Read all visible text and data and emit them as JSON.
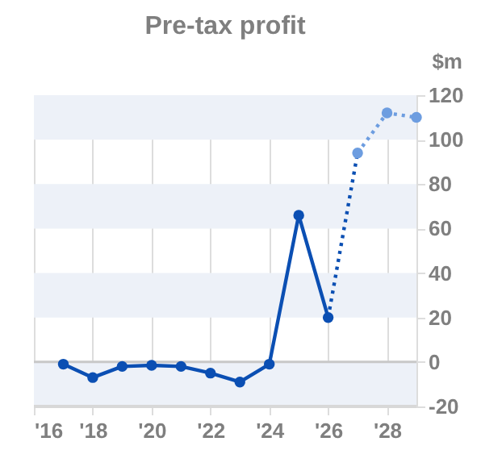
{
  "chart_data": {
    "type": "line",
    "title": "Pre-tax profit",
    "ylabel": "$m",
    "series": [
      {
        "color": "#0b4fb3",
        "line_style": "solid",
        "marker": "circle",
        "x": [
          2017,
          2018,
          2019,
          2020,
          2021,
          2022,
          2023,
          2024,
          2025,
          2026
        ],
        "values": [
          -1,
          -7,
          -2,
          -1.5,
          -2,
          -5,
          -9,
          -1,
          66,
          20
        ]
      },
      {
        "color": "#0b4fb3",
        "line_style": "dotted",
        "marker": "none",
        "x": [
          2026,
          2027
        ],
        "values": [
          20,
          94
        ]
      },
      {
        "color": "#6d9de0",
        "line_style": "dotted",
        "marker": "circle",
        "x": [
          2027,
          2028,
          2029
        ],
        "values": [
          94,
          112,
          110
        ]
      }
    ],
    "xlim": [
      2016,
      2029
    ],
    "xticks": [
      {
        "value": 2016,
        "label": "'16"
      },
      {
        "value": 2018,
        "label": "'18"
      },
      {
        "value": 2020,
        "label": "'20"
      },
      {
        "value": 2022,
        "label": "'22"
      },
      {
        "value": 2024,
        "label": "'24"
      },
      {
        "value": 2026,
        "label": "'26"
      },
      {
        "value": 2028,
        "label": "'28"
      }
    ],
    "ylim": [
      -20,
      120
    ],
    "yticks": [
      -20,
      0,
      20,
      40,
      60,
      80,
      100,
      120
    ],
    "grid": "x",
    "bands": [
      {
        "axis": "y",
        "from": -20,
        "to": 0,
        "color": "#edf1f8"
      },
      {
        "axis": "y",
        "from": 20,
        "to": 40,
        "color": "#edf1f8"
      },
      {
        "axis": "y",
        "from": 60,
        "to": 80,
        "color": "#edf1f8"
      },
      {
        "axis": "y",
        "from": 100,
        "to": 120,
        "color": "#edf1f8"
      }
    ],
    "ref_lines": [
      {
        "axis": "y",
        "value": 0,
        "color": "#c8c8c8"
      }
    ]
  }
}
